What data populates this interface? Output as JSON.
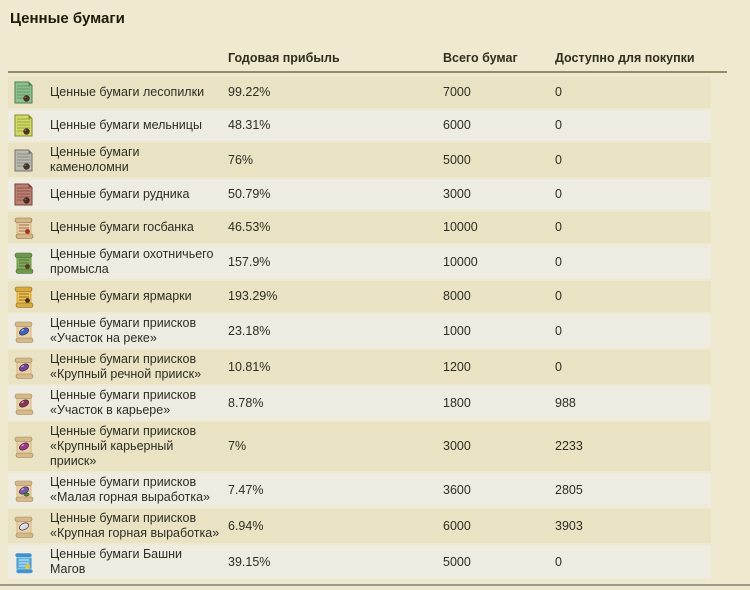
{
  "page": {
    "title": "Ценные бумаги"
  },
  "table": {
    "headers": {
      "profit": "Годовая прибыль",
      "total": "Всего бумаг",
      "available": "Доступно для покупки"
    },
    "rows": [
      {
        "label": "Ценные бумаги лесопилки",
        "profit": "99.22%",
        "total": "7000",
        "available": "0",
        "icon": {
          "name": "sawmill-certificate-icon",
          "kind": "certificate",
          "paper": "#8ec08e",
          "line": "#4e7e4e",
          "seal": "#4a3222"
        }
      },
      {
        "label": "Ценные бумаги мельницы",
        "profit": "48.31%",
        "total": "6000",
        "available": "0",
        "icon": {
          "name": "mill-certificate-icon",
          "kind": "certificate",
          "paper": "#cdd968",
          "line": "#8a8a28",
          "seal": "#4a3222"
        }
      },
      {
        "label": "Ценные бумаги каменоломни",
        "profit": "76%",
        "total": "5000",
        "available": "0",
        "icon": {
          "name": "quarry-certificate-icon",
          "kind": "certificate",
          "paper": "#b9b9af",
          "line": "#73736b",
          "seal": "#43332b"
        }
      },
      {
        "label": "Ценные бумаги рудника",
        "profit": "50.79%",
        "total": "3000",
        "available": "0",
        "icon": {
          "name": "mine-certificate-icon",
          "kind": "certificate",
          "paper": "#bb8071",
          "line": "#7c4038",
          "seal": "#432a22"
        }
      },
      {
        "label": "Ценные бумаги госбанка",
        "profit": "46.53%",
        "total": "10000",
        "available": "0",
        "icon": {
          "name": "state-bank-scroll-icon",
          "kind": "scroll",
          "paper": "#e6cda2",
          "roll": "#d4b684",
          "line": "#8a5a3a",
          "seal": "#a03028"
        }
      },
      {
        "label": "Ценные бумаги охотничьего промысла",
        "profit": "157.9%",
        "total": "10000",
        "available": "0",
        "icon": {
          "name": "hunting-scroll-icon",
          "kind": "scroll",
          "paper": "#83ad5c",
          "roll": "#6d9648",
          "line": "#3f5f28",
          "seal": "#5a3a22"
        }
      },
      {
        "label": "Ценные бумаги ярмарки",
        "profit": "193.29%",
        "total": "8000",
        "available": "0",
        "icon": {
          "name": "fair-scroll-icon",
          "kind": "scroll",
          "paper": "#ecc052",
          "roll": "#d8a93e",
          "line": "#7a5a18",
          "seal": "#4a3222"
        }
      },
      {
        "label": "Ценные бумаги приисков «Участок на реке»",
        "profit": "23.18%",
        "total": "1000",
        "available": "0",
        "icon": {
          "name": "river-plot-scroll-icon",
          "kind": "scroll",
          "paper": "#e8d0a8",
          "roll": "#d6b888",
          "line": "#9a7a50",
          "gem": "#3f62c0"
        }
      },
      {
        "label": "Ценные бумаги приисков «Крупный речной прииск»",
        "profit": "10.81%",
        "total": "1200",
        "available": "0",
        "icon": {
          "name": "large-river-mine-scroll-icon",
          "kind": "scroll",
          "paper": "#e8d0a8",
          "roll": "#d6b888",
          "line": "#9a7a50",
          "gem": "#7b3f95"
        }
      },
      {
        "label": "Ценные бумаги приисков «Участок в карьере»",
        "profit": "8.78%",
        "total": "1800",
        "available": "988",
        "icon": {
          "name": "quarry-plot-scroll-icon",
          "kind": "scroll",
          "paper": "#e8d0a8",
          "roll": "#d6b888",
          "line": "#9a7a50",
          "gem": "#8f3252"
        }
      },
      {
        "label": "Ценные бумаги приисков «Крупный карьерный прииск»",
        "profit": "7%",
        "total": "3000",
        "available": "2233",
        "icon": {
          "name": "large-quarry-mine-scroll-icon",
          "kind": "scroll",
          "paper": "#e8d0a8",
          "roll": "#d6b888",
          "line": "#9a7a50",
          "gem": "#a63489"
        }
      },
      {
        "label": "Ценные бумаги приисков «Малая горная выработка»",
        "profit": "7.47%",
        "total": "3600",
        "available": "2805",
        "icon": {
          "name": "small-mountain-working-scroll-icon",
          "kind": "scroll",
          "paper": "#e8d0a8",
          "roll": "#d6b888",
          "line": "#9a7a50",
          "gem": "#7e56ad",
          "gem2": "#4a8a3a"
        }
      },
      {
        "label": "Ценные бумаги приисков «Крупная горная выработка»",
        "profit": "6.94%",
        "total": "6000",
        "available": "3903",
        "icon": {
          "name": "large-mountain-working-scroll-icon",
          "kind": "scroll",
          "paper": "#e8d0a8",
          "roll": "#d6b888",
          "line": "#9a7a50",
          "gem": "#dcdce8"
        }
      },
      {
        "label": "Ценные бумаги Башни Магов",
        "profit": "39.15%",
        "total": "5000",
        "available": "0",
        "icon": {
          "name": "mage-tower-scroll-icon",
          "kind": "scroll",
          "paper": "#5fb0dd",
          "roll": "#3f90c8",
          "line": "#eef8ff",
          "seal": "#e8c43a"
        }
      }
    ]
  },
  "colors": {
    "page_background": "#efe9cf",
    "row_dark": "#e9e2c3",
    "row_light": "#eeece0",
    "header_underline": "#8f8e69",
    "bottom_divider": "#9b9a8d",
    "title_text": "#1c1c08",
    "body_text": "#2d2d24"
  }
}
